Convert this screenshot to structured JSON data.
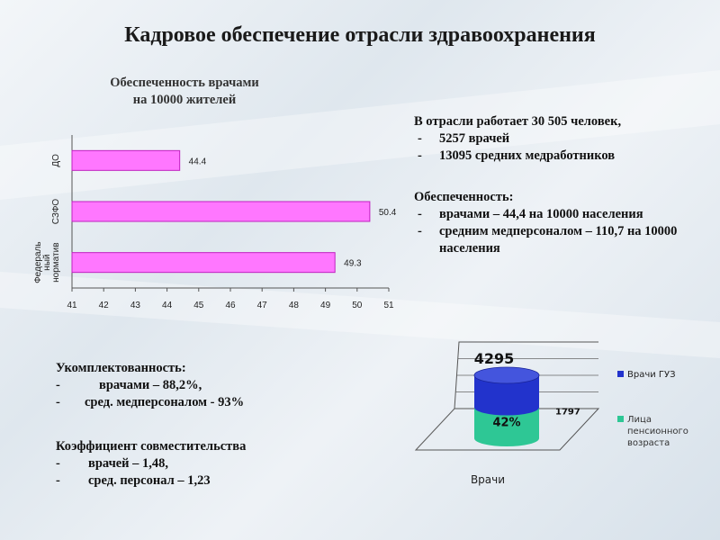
{
  "title": "Кадровое обеспечение отрасли здравоохранения",
  "bar_chart_title_lines": [
    "Обеспеченность врачами",
    "на 10000 жителей"
  ],
  "staff": {
    "heading": "В отрасли работает 30 505 человек,",
    "items": [
      "5257 врачей",
      "13095 средних медработников"
    ]
  },
  "supply": {
    "heading": "Обеспеченность:",
    "items": [
      "врачами – 44,4 на 10000 населения",
      "средним медперсоналом – 110,7 на 10000 населения"
    ]
  },
  "completeness": {
    "heading": "Укомплектованность:",
    "items": [
      "врачами – 88,2%,",
      "сред. медперсоналом - 93%"
    ]
  },
  "coefficient": {
    "heading": "Коэффициент совместительства",
    "items": [
      "врачей – 1,48,",
      "сред. персонал – 1,23"
    ]
  },
  "colors": {
    "bar_fill": "#ff77ff",
    "bar_stroke": "#c020c0",
    "cyl_blue": "#2233cc",
    "cyl_green": "#2ec795"
  },
  "chart_data": [
    {
      "type": "bar",
      "orientation": "horizontal",
      "categories": [
        "ДО",
        "СЗФО",
        "Федеральный норматив"
      ],
      "category_label_lines": [
        [
          "ДО"
        ],
        [
          "СЗФО"
        ],
        [
          "Федераль",
          "ный",
          "норматив"
        ]
      ],
      "values": [
        44.4,
        50.4,
        49.3
      ],
      "value_labels": [
        "44.4",
        "50.4",
        "49.3"
      ],
      "xlim": [
        41,
        51
      ],
      "x_ticks": [
        "41",
        "42",
        "43",
        "44",
        "45",
        "46",
        "47",
        "48",
        "49",
        "50",
        "51"
      ],
      "grid": false
    },
    {
      "type": "bar",
      "style": "3d-stacked-cylinder",
      "categories": [
        "Врачи"
      ],
      "series": [
        {
          "name": "Врачи ГУЗ",
          "values": [
            4295
          ],
          "label": "4295"
        },
        {
          "name": "Лица пенсионного возраста",
          "values": [
            1797
          ],
          "label": "1797",
          "percent_label": "42%"
        }
      ],
      "legend_position": "right"
    }
  ]
}
